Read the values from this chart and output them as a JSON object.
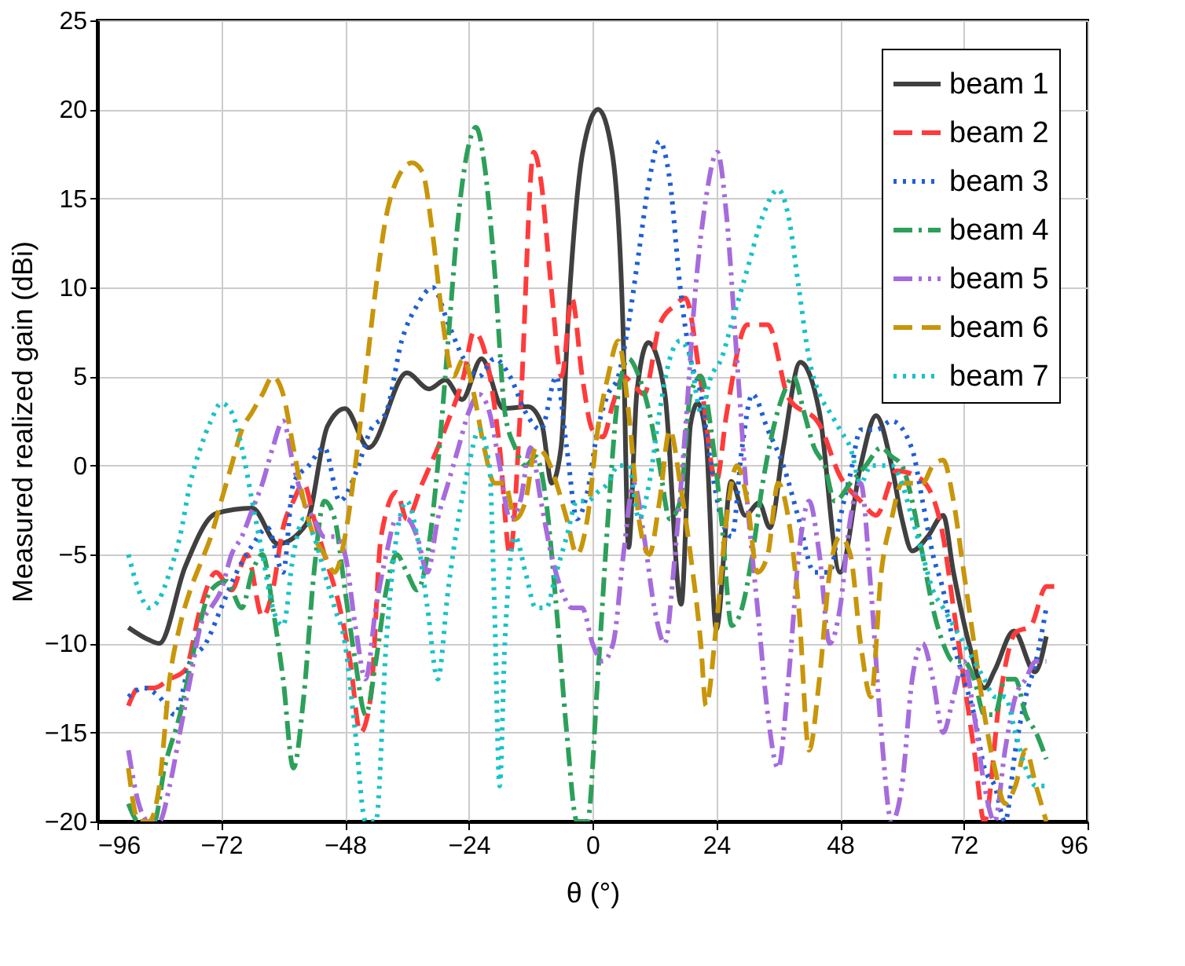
{
  "chart_data": {
    "type": "line",
    "xlabel": "θ (°)",
    "ylabel": "Measured realized gain (dBi)",
    "xlim": [
      -96,
      96
    ],
    "xticks": [
      -96,
      -72,
      -48,
      -24,
      0,
      24,
      48,
      72,
      96
    ],
    "ylim": [
      -20,
      25
    ],
    "yticks": [
      -20,
      -15,
      -10,
      -5,
      0,
      5,
      10,
      15,
      20,
      25
    ],
    "grid": true,
    "legend": "top right",
    "marker": "none",
    "series": [
      {
        "name": "beam 1",
        "color": "#404040",
        "line_style": "solid",
        "x": [
          -90,
          -86,
          -84,
          -79,
          -73,
          -66,
          -61,
          -55.5,
          -51.4,
          -48,
          -43.4,
          -36,
          -31.7,
          -28.5,
          -25.3,
          -21.5,
          -17.3,
          -12.5,
          -9.8,
          -7.9,
          -6.1,
          -4.5,
          -1.9,
          1.1,
          3.8,
          5.9,
          7,
          8.6,
          10.8,
          14,
          17.2,
          19,
          20.4,
          22,
          24,
          26.9,
          29.6,
          32.3,
          34.4,
          37,
          40.3,
          44,
          48,
          52,
          55,
          58,
          60,
          62,
          65,
          68,
          70,
          73,
          76,
          78,
          81.7,
          85.8,
          88
        ],
        "values": [
          -9.1,
          -9.8,
          -10,
          -5.7,
          -2.7,
          -2.4,
          -4.4,
          -3.3,
          2.2,
          3.2,
          1,
          5.2,
          4.3,
          4.8,
          3.7,
          6,
          3.2,
          3.3,
          2.3,
          -1,
          1,
          9.4,
          17.6,
          20,
          17.6,
          7.9,
          -4.6,
          4.1,
          6.9,
          4.1,
          -7.8,
          2.3,
          3.5,
          1.6,
          -9.2,
          -0.9,
          -2.8,
          -2.1,
          -3.5,
          1,
          5.8,
          3,
          -6,
          0,
          2.8,
          0,
          -3,
          -4.8,
          -4,
          -2.8,
          -6,
          -10,
          -12.5,
          -11.5,
          -9.3,
          -11.6,
          -9.6
        ]
      },
      {
        "name": "beam 2",
        "color": "#ff3b3b",
        "line_style": "dashed",
        "x": [
          -90,
          -88,
          -85,
          -82,
          -79,
          -76,
          -73,
          -70,
          -67,
          -64,
          -62,
          -60,
          -58,
          -56,
          -54,
          -52,
          -49,
          -47,
          -45,
          -43,
          -41,
          -38,
          -36,
          -33,
          -30,
          -28,
          -25,
          -23,
          -21,
          -18,
          -16,
          -14,
          -11.4,
          -10,
          -8,
          -6,
          -4,
          -2,
          0,
          2,
          4,
          6,
          8,
          10,
          13,
          16,
          18,
          21,
          24,
          26,
          30,
          34,
          38,
          44,
          48,
          52,
          55,
          59,
          62,
          65,
          68,
          70,
          72,
          74,
          76,
          79,
          82,
          85,
          88,
          90
        ],
        "values": [
          -13.5,
          -12.5,
          -12.5,
          -12,
          -11.5,
          -8,
          -6,
          -7,
          -5,
          -8.5,
          -7,
          -3.5,
          -2,
          -1,
          -3,
          -5,
          -8,
          -11,
          -15,
          -13,
          -4,
          -1.5,
          -3,
          -1,
          1,
          2.5,
          5,
          7.5,
          6.5,
          1,
          -5,
          3,
          17.6,
          16,
          10,
          5,
          9.4,
          5,
          2,
          1.6,
          3.5,
          5,
          4.5,
          4,
          7.9,
          9,
          9.4,
          4.7,
          -0.9,
          2.9,
          7.9,
          7.9,
          3.8,
          2.3,
          -0.6,
          -2,
          -2.8,
          -0.3,
          -0.5,
          -1.2,
          -4,
          -8,
          -12,
          -16,
          -20,
          -13,
          -9.4,
          -9,
          -6.8,
          -6.8
        ]
      },
      {
        "name": "beam 3",
        "color": "#1f5fd6",
        "line_style": "dotted",
        "x": [
          -90,
          -87,
          -84,
          -81,
          -78,
          -75,
          -72,
          -69,
          -66,
          -63,
          -60,
          -58,
          -55,
          -52,
          -49,
          -46,
          -43,
          -40,
          -37,
          -34,
          -31,
          -28,
          -25,
          -22,
          -19,
          -16,
          -13,
          -10,
          -7,
          -5,
          -3,
          -1,
          1,
          3,
          5,
          7,
          9,
          11,
          13,
          15,
          17,
          19,
          21,
          23,
          25,
          27,
          29,
          31,
          34,
          37,
          40,
          43,
          46,
          48,
          50,
          52,
          55,
          58,
          62,
          64,
          66,
          68,
          70,
          72,
          74,
          76,
          78,
          80,
          82,
          84,
          86,
          88
        ],
        "values": [
          -13,
          -12.5,
          -13,
          -14,
          -11,
          -10,
          -8,
          -6,
          -4.5,
          -3.5,
          -6,
          -1,
          0,
          1,
          -2,
          -0.5,
          2,
          3,
          7,
          9,
          10,
          8,
          6,
          5,
          6,
          5,
          3,
          2,
          5,
          1,
          -3,
          -1.5,
          2,
          4,
          5,
          8,
          12,
          16,
          18.2,
          16,
          10,
          6,
          4,
          0,
          -3,
          -4,
          1,
          4,
          2,
          0,
          -3,
          -6,
          -6,
          -3,
          -0.5,
          2,
          2,
          2.5,
          0.9,
          -2,
          -5,
          -7,
          -10,
          -12,
          -14,
          -17,
          -18,
          -20,
          -16,
          -13,
          -11,
          -8
        ]
      },
      {
        "name": "beam 4",
        "color": "#2ca05a",
        "line_style": "dashdot",
        "x": [
          -90,
          -88,
          -85,
          -83,
          -80,
          -77,
          -74,
          -71,
          -68,
          -66,
          -64,
          -62,
          -60,
          -58,
          -56,
          -54,
          -52,
          -50,
          -48,
          -46,
          -44,
          -42,
          -40,
          -38,
          -36,
          -34,
          -32,
          -30,
          -28,
          -26,
          -24,
          -22.6,
          -21,
          -19,
          -17,
          -15,
          -13,
          -11,
          -9,
          -7,
          -5,
          -3,
          -1,
          1,
          3,
          5,
          7,
          9,
          11,
          13,
          15,
          17,
          19,
          21,
          23,
          25,
          27,
          29,
          31,
          33,
          35,
          37,
          39,
          41,
          43,
          45,
          47,
          50,
          53,
          56,
          58,
          60,
          62,
          64,
          66,
          68,
          70,
          72,
          74,
          76,
          78,
          80,
          82,
          84,
          86,
          88
        ],
        "values": [
          -19,
          -20,
          -20,
          -17,
          -14,
          -10,
          -7,
          -6.5,
          -8,
          -6,
          -5,
          -8,
          -12,
          -17,
          -13,
          -6,
          -2,
          -3,
          -7,
          -11,
          -14,
          -11,
          -7,
          -5,
          -6,
          -7,
          -5,
          0,
          7,
          14,
          18,
          19,
          17,
          11,
          3,
          1,
          0,
          0.5,
          -2,
          -8,
          -15,
          -20,
          -20,
          -12,
          -3,
          4,
          6,
          5,
          3,
          0,
          -3,
          -2,
          4,
          5,
          2,
          -3,
          -9,
          -8,
          -5,
          -1,
          2,
          4,
          5,
          3,
          1,
          0,
          -2,
          -1,
          0,
          1,
          0.5,
          0,
          -2,
          -5,
          -8,
          -10,
          -11,
          -11,
          -12,
          -14,
          -14,
          -12,
          -12,
          -14,
          -15,
          -16.5
        ]
      },
      {
        "name": "beam 5",
        "color": "#a66bdc",
        "line_style": "dashdotdot",
        "x": [
          -90,
          -88,
          -86,
          -84,
          -82,
          -80,
          -78,
          -76,
          -74,
          -72,
          -70,
          -68,
          -66,
          -64,
          -62,
          -60,
          -58,
          -56,
          -54,
          -52,
          -50,
          -48,
          -46,
          -44,
          -42,
          -40,
          -38,
          -36,
          -34,
          -32,
          -30,
          -28,
          -26,
          -24,
          -22,
          -20,
          -18,
          -16,
          -14,
          -12,
          -10,
          -8,
          -6,
          -4,
          -2,
          0,
          2,
          4,
          6,
          8,
          10,
          12,
          14,
          16,
          18,
          20,
          22,
          24.2,
          26,
          28,
          30,
          32,
          34,
          36,
          38,
          40,
          42,
          44,
          46,
          48,
          50,
          52,
          54,
          56,
          58,
          60,
          62,
          64,
          66,
          68,
          70,
          72,
          74,
          76,
          78,
          80,
          82,
          84,
          86,
          88
        ],
        "values": [
          -16,
          -19,
          -20,
          -20,
          -18,
          -15,
          -12,
          -9,
          -8,
          -7,
          -5,
          -4,
          -2.5,
          -1,
          1,
          2.5,
          0,
          -2,
          -3,
          -4,
          -4,
          -5,
          -9,
          -12,
          -8,
          -5,
          -3,
          -3,
          -4,
          -6,
          -3,
          -1,
          1,
          3,
          4,
          3,
          0,
          -3,
          -2,
          1,
          -2,
          -5,
          -7,
          -8,
          -8,
          -10,
          -11,
          -10,
          -5,
          -1,
          -4,
          -8,
          -10,
          -5,
          2,
          10,
          15,
          17.6,
          14,
          6,
          -2,
          -8,
          -14,
          -17,
          -12,
          -5,
          -2,
          -5,
          -10,
          -8,
          -3,
          -1,
          -7,
          -15,
          -20,
          -18,
          -12,
          -10,
          -12,
          -15,
          -13,
          -11,
          -14,
          -18,
          -20,
          -16,
          -13,
          -12,
          -11,
          -11
        ]
      },
      {
        "name": "beam 6",
        "color": "#c8960a",
        "line_style": "dashed",
        "x": [
          -90,
          -88,
          -86,
          -84,
          -82,
          -80,
          -78,
          -76,
          -74,
          -72,
          -70,
          -68,
          -66,
          -64,
          -62,
          -60,
          -58,
          -56,
          -54,
          -52,
          -50,
          -48,
          -46,
          -44,
          -42,
          -40,
          -38,
          -35,
          -33,
          -31,
          -29,
          -27,
          -25,
          -23,
          -21,
          -19,
          -17,
          -15,
          -13,
          -11,
          -9,
          -7,
          -5,
          -3,
          -1,
          1,
          3,
          5,
          7,
          9,
          11,
          13,
          15,
          17,
          19,
          21,
          22,
          24,
          26,
          28,
          30,
          32,
          34,
          36,
          38,
          40,
          42,
          44,
          46,
          48,
          50,
          52,
          54,
          56,
          58,
          60,
          62,
          64,
          66,
          68,
          70,
          72,
          74,
          76,
          78,
          80,
          82,
          84,
          86,
          88
        ],
        "values": [
          -17,
          -20,
          -20,
          -18,
          -12,
          -9,
          -7,
          -5.5,
          -4,
          -2,
          0,
          2,
          3,
          4,
          5,
          4,
          1,
          -2,
          -4,
          -5,
          -6,
          -4,
          0,
          5,
          10,
          14,
          16,
          17,
          16.5,
          13,
          8,
          5,
          6,
          4,
          1,
          -1,
          -1,
          -3,
          -2,
          1,
          0.5,
          -1,
          -3,
          -5,
          -3,
          2,
          5,
          7,
          3,
          -3,
          -5,
          -2,
          2,
          -1,
          -5,
          -10,
          -13.5,
          -9,
          -3,
          0,
          -2,
          -6,
          -5,
          -1,
          -3,
          -8,
          -16,
          -12,
          -6,
          -4,
          -5,
          -10,
          -13,
          -6,
          -3,
          -1,
          -1,
          -1,
          0,
          0.3,
          -2,
          -6,
          -10,
          -14,
          -17,
          -19,
          -18,
          -16,
          -18,
          -20
        ]
      },
      {
        "name": "beam 7",
        "color": "#17c3c8",
        "line_style": "dotted",
        "x": [
          -90,
          -88,
          -86,
          -84,
          -82,
          -80,
          -78,
          -76,
          -74,
          -72,
          -70,
          -68,
          -66,
          -64,
          -62,
          -60,
          -58,
          -56,
          -54,
          -52,
          -50,
          -48,
          -46,
          -44,
          -42,
          -40,
          -38,
          -36,
          -34,
          -32,
          -30,
          -28,
          -26,
          -24,
          -22,
          -20,
          -19,
          -18,
          -17,
          -15,
          -13,
          -11,
          -9,
          -7,
          -5,
          -3,
          -1,
          1,
          3,
          5,
          7,
          9,
          11,
          13,
          15,
          17,
          19,
          21,
          23,
          25,
          27,
          30,
          33,
          36,
          38,
          40,
          42,
          44,
          46,
          48,
          50,
          52,
          54,
          56,
          58,
          60,
          62,
          64,
          66,
          68,
          70,
          72,
          74,
          76,
          78,
          80,
          82,
          84,
          86,
          88
        ],
        "values": [
          -5,
          -7,
          -8,
          -7.5,
          -6,
          -4,
          -1,
          1,
          2.5,
          3.5,
          3,
          1,
          -2,
          -5,
          -8,
          -9,
          -5,
          -3,
          -4,
          -6,
          -8,
          -10,
          -15,
          -20,
          -20,
          -10,
          -4,
          -2,
          -4,
          -8,
          -12,
          -7,
          -3,
          0,
          2,
          0,
          -8,
          -18,
          -10,
          -4,
          -6,
          -8,
          -8,
          -6,
          -4,
          -2,
          -2,
          -1.5,
          -1,
          0,
          0,
          -3,
          -1,
          3,
          6,
          7,
          6,
          3,
          5,
          6,
          8,
          11,
          14,
          15.5,
          14,
          10,
          6,
          4,
          3,
          2,
          1,
          -1,
          0,
          0,
          0,
          -1,
          -3,
          -5,
          -7,
          -8,
          -9,
          -10,
          -11,
          -12,
          -13,
          -13,
          -15,
          -17,
          -18,
          -18
        ]
      }
    ]
  }
}
